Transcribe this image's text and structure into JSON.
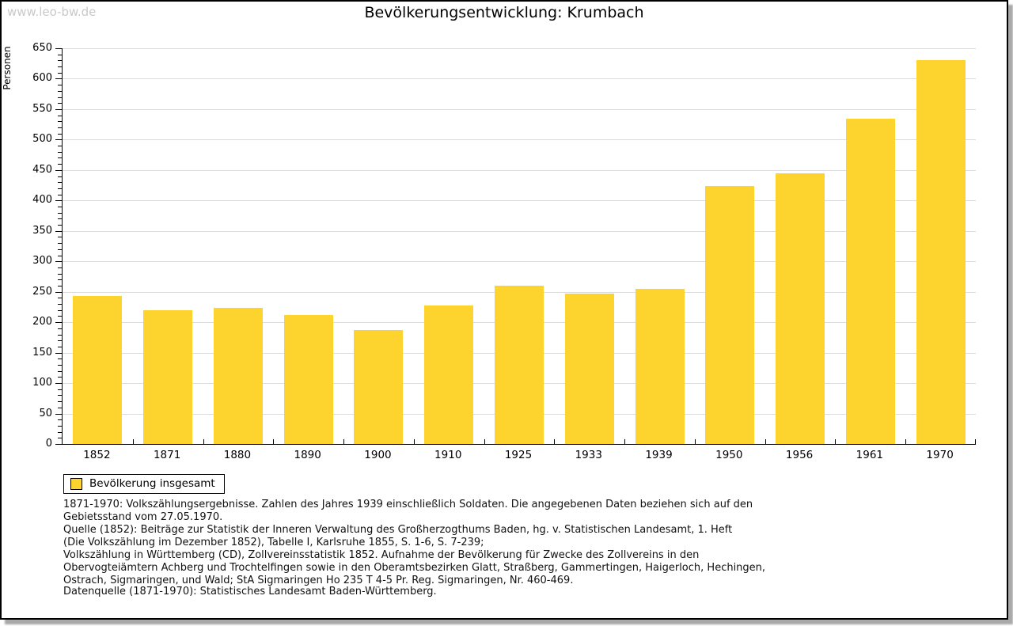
{
  "watermark": "www.leo-bw.de",
  "title": "Bevölkerungsentwicklung: Krumbach",
  "chart_data": {
    "type": "bar",
    "title": "Bevölkerungsentwicklung: Krumbach",
    "xlabel": "",
    "ylabel": "Personen",
    "categories": [
      "1852",
      "1871",
      "1880",
      "1890",
      "1900",
      "1910",
      "1925",
      "1933",
      "1939",
      "1950",
      "1956",
      "1961",
      "1970"
    ],
    "series": [
      {
        "name": "Bevölkerung insgesamt",
        "values": [
          243,
          220,
          224,
          212,
          187,
          227,
          260,
          247,
          255,
          424,
          444,
          534,
          631
        ]
      }
    ],
    "ylim": [
      0,
      650
    ],
    "y_major_step": 50,
    "y_minor_step": 10,
    "grid": true,
    "legend_position": "bottom-left",
    "colors": {
      "bar": "#FDD32D",
      "gridline": "#DCDCDC",
      "axis": "#000000",
      "watermark": "#C9C9C9"
    }
  },
  "legend": {
    "items": [
      {
        "label": "Bevölkerung insgesamt",
        "swatch_color": "#FDD32D"
      }
    ]
  },
  "footnotes": {
    "lines": [
      "1871-1970: Volkszählungsergebnisse. Zahlen des Jahres 1939 einschließlich Soldaten. Die angegebenen Daten beziehen sich auf den",
      "Gebietsstand vom 27.05.1970.",
      "Quelle (1852): Beiträge zur Statistik der Inneren Verwaltung des Großherzogthums Baden, hg. v. Statistischen Landesamt, 1. Heft",
      "(Die Volkszählung im Dezember 1852), Tabelle I, Karlsruhe 1855, S. 1-6, S. 7-239;",
      "Volkszählung in Württemberg (CD), Zollvereinsstatistik 1852. Aufnahme der Bevölkerung für Zwecke des Zollvereins in den",
      "Obervogteiämtern Achberg und Trochtelfingen sowie in den Oberamtsbezirken Glatt, Straßberg, Gammertingen, Haigerloch, Hechingen,",
      "Ostrach, Sigmaringen, und Wald; StA Sigmaringen Ho 235 T 4-5 Pr. Reg. Sigmaringen, Nr. 460-469."
    ],
    "datasource": "Datenquelle (1871-1970): Statistisches Landesamt Baden-Württemberg."
  }
}
